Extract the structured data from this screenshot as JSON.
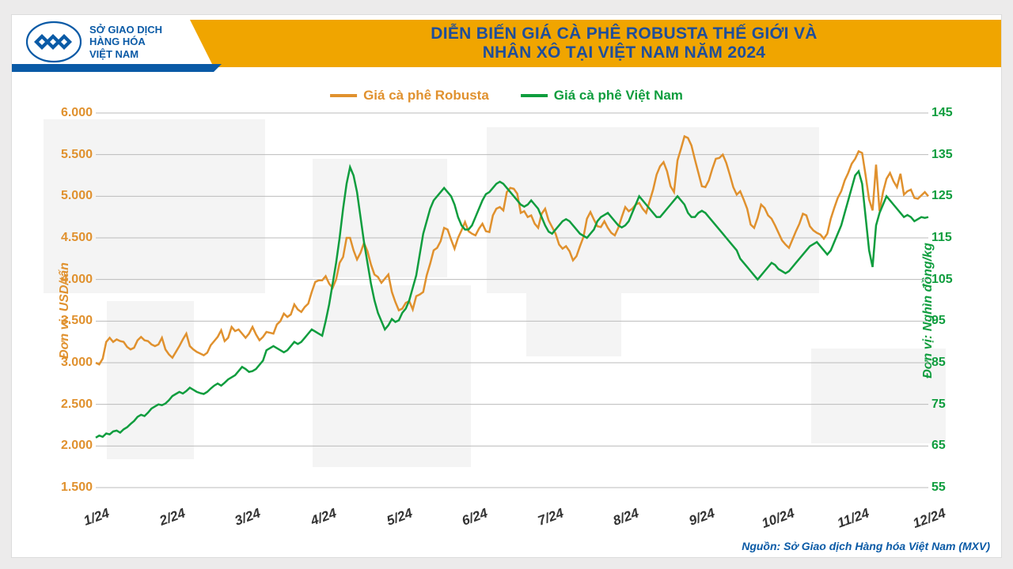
{
  "logo_text_l1": "SỞ GIAO DỊCH",
  "logo_text_l2": "HÀNG HÓA",
  "logo_text_l3": "VIỆT NAM",
  "title_l1": "DIỄN BIẾN GIÁ CÀ PHÊ ROBUSTA THẾ GIỚI VÀ",
  "title_l2": "NHÂN XÔ TẠI VIỆT NAM NĂM 2024",
  "y_label_left": "Đơn vị: USD/tấn",
  "y_label_right": "Đơn vị: Nghìn đồng/kg",
  "source": "Nguồn: Sở Giao dịch Hàng hóa Việt Nam (MXV)",
  "legend": {
    "robusta": "Giá cà phê Robusta",
    "vietnam": "Giá cà phê Việt Nam"
  },
  "colors": {
    "robusta": "#e0912e",
    "vietnam": "#0f9d3e",
    "title_bg": "#f0a500",
    "title_text": "#1f4e9a",
    "brand": "#0a5aa6",
    "grid": "#c0c0c0",
    "bg": "#ffffff"
  },
  "axis_left": {
    "min": 1500,
    "max": 6000,
    "step": 500,
    "ticks": [
      "1.500",
      "2.000",
      "2.500",
      "3.000",
      "3.500",
      "4.000",
      "4.500",
      "5.000",
      "5.500",
      "6.000"
    ]
  },
  "axis_right": {
    "min": 55,
    "max": 145,
    "step": 10,
    "ticks": [
      "55",
      "65",
      "75",
      "85",
      "95",
      "105",
      "115",
      "125",
      "135",
      "145"
    ]
  },
  "x_labels": [
    "1/24",
    "2/24",
    "3/24",
    "4/24",
    "5/24",
    "6/24",
    "7/24",
    "8/24",
    "9/24",
    "10/24",
    "11/24",
    "12/24"
  ],
  "series_robusta": [
    3000,
    2980,
    3050,
    3250,
    3300,
    3250,
    3280,
    3260,
    3250,
    3190,
    3160,
    3180,
    3270,
    3310,
    3270,
    3260,
    3220,
    3200,
    3220,
    3300,
    3160,
    3100,
    3060,
    3130,
    3200,
    3280,
    3350,
    3200,
    3160,
    3130,
    3110,
    3090,
    3120,
    3210,
    3260,
    3310,
    3390,
    3260,
    3300,
    3430,
    3380,
    3400,
    3350,
    3300,
    3350,
    3430,
    3340,
    3270,
    3310,
    3370,
    3360,
    3350,
    3460,
    3500,
    3590,
    3550,
    3580,
    3700,
    3640,
    3610,
    3670,
    3710,
    3850,
    3970,
    3990,
    3990,
    4040,
    3950,
    3900,
    4000,
    4200,
    4270,
    4500,
    4500,
    4350,
    4240,
    4320,
    4440,
    4340,
    4180,
    4060,
    4030,
    3960,
    4010,
    4060,
    3850,
    3730,
    3630,
    3650,
    3720,
    3740,
    3640,
    3800,
    3820,
    3850,
    4050,
    4190,
    4350,
    4380,
    4460,
    4620,
    4600,
    4480,
    4370,
    4500,
    4590,
    4690,
    4580,
    4550,
    4530,
    4610,
    4670,
    4580,
    4570,
    4770,
    4850,
    4870,
    4830,
    5050,
    5100,
    5090,
    5030,
    4800,
    4820,
    4750,
    4770,
    4670,
    4620,
    4790,
    4850,
    4710,
    4630,
    4550,
    4420,
    4370,
    4400,
    4340,
    4230,
    4280,
    4400,
    4510,
    4730,
    4810,
    4720,
    4640,
    4630,
    4700,
    4620,
    4560,
    4530,
    4620,
    4750,
    4870,
    4820,
    4850,
    4900,
    4920,
    4850,
    4800,
    4940,
    5080,
    5260,
    5360,
    5410,
    5300,
    5120,
    5050,
    5430,
    5570,
    5720,
    5700,
    5610,
    5440,
    5280,
    5120,
    5110,
    5190,
    5330,
    5450,
    5460,
    5500,
    5400,
    5260,
    5110,
    5020,
    5060,
    4960,
    4850,
    4660,
    4620,
    4740,
    4900,
    4860,
    4770,
    4730,
    4650,
    4560,
    4470,
    4420,
    4380,
    4480,
    4580,
    4670,
    4790,
    4770,
    4640,
    4590,
    4560,
    4540,
    4490,
    4550,
    4730,
    4860,
    4980,
    5060,
    5190,
    5280,
    5390,
    5450,
    5540,
    5520,
    5250,
    4960,
    4830,
    5380,
    4820,
    5050,
    5210,
    5280,
    5180,
    5110,
    5270,
    5020,
    5060,
    5080,
    4980,
    4970,
    5010,
    5050,
    5000
  ],
  "series_vietnam": [
    67,
    67.5,
    67.2,
    68,
    67.8,
    68.5,
    68.7,
    68.2,
    69,
    69.5,
    70.3,
    71,
    72,
    72.5,
    72.2,
    73,
    74,
    74.5,
    75,
    74.8,
    75.2,
    76,
    77,
    77.5,
    78,
    77.6,
    78.2,
    79,
    78.5,
    78,
    77.7,
    77.5,
    78,
    78.8,
    79.5,
    80,
    79.5,
    80.2,
    81,
    81.5,
    82,
    83,
    84,
    83.5,
    82.8,
    83,
    83.5,
    84.5,
    85.5,
    88,
    88.5,
    89,
    88.5,
    88,
    87.5,
    88,
    89,
    90,
    89.5,
    90,
    91,
    92,
    93,
    92.5,
    92,
    91.5,
    95,
    99,
    104,
    109,
    115,
    122,
    128,
    132,
    130,
    126,
    120,
    114,
    109,
    104,
    100,
    97,
    95,
    93,
    94,
    95.5,
    94.8,
    95.2,
    97,
    98,
    100,
    103,
    106,
    111,
    116,
    119,
    122,
    124,
    125,
    126,
    127,
    126,
    125,
    123,
    120,
    118,
    117,
    117,
    118,
    120,
    122,
    124,
    125.5,
    126,
    127,
    128,
    128.5,
    128,
    127,
    126,
    125,
    124,
    123,
    122.5,
    123,
    124,
    123,
    122,
    120,
    118,
    116.5,
    116,
    117,
    118,
    119,
    119.5,
    119,
    118,
    117,
    116,
    115.5,
    115,
    116,
    117,
    119,
    120,
    120.5,
    121,
    120,
    119,
    118,
    117.5,
    118,
    119,
    121,
    123,
    125,
    124,
    123,
    122,
    121,
    120,
    120,
    121,
    122,
    123,
    124,
    125,
    124,
    123,
    121,
    120,
    120,
    121,
    121.5,
    121,
    120,
    119,
    118,
    117,
    116,
    115,
    114,
    113,
    112,
    110,
    109,
    108,
    107,
    106,
    105,
    106,
    107,
    108,
    109,
    108.5,
    107.5,
    107,
    106.5,
    107,
    108,
    109,
    110,
    111,
    112,
    113,
    113.5,
    114,
    113,
    112,
    111,
    112,
    114,
    116,
    118,
    121,
    124,
    127,
    130,
    131,
    128,
    120,
    112,
    108,
    118,
    121,
    123,
    125,
    124,
    123,
    122,
    121,
    120,
    120.5,
    120,
    119,
    119.5,
    120,
    119.8,
    120
  ],
  "line_width": 2.5,
  "font": {
    "tick_size": 16,
    "label_size": 16,
    "legend_size": 17,
    "title_size": 21
  }
}
